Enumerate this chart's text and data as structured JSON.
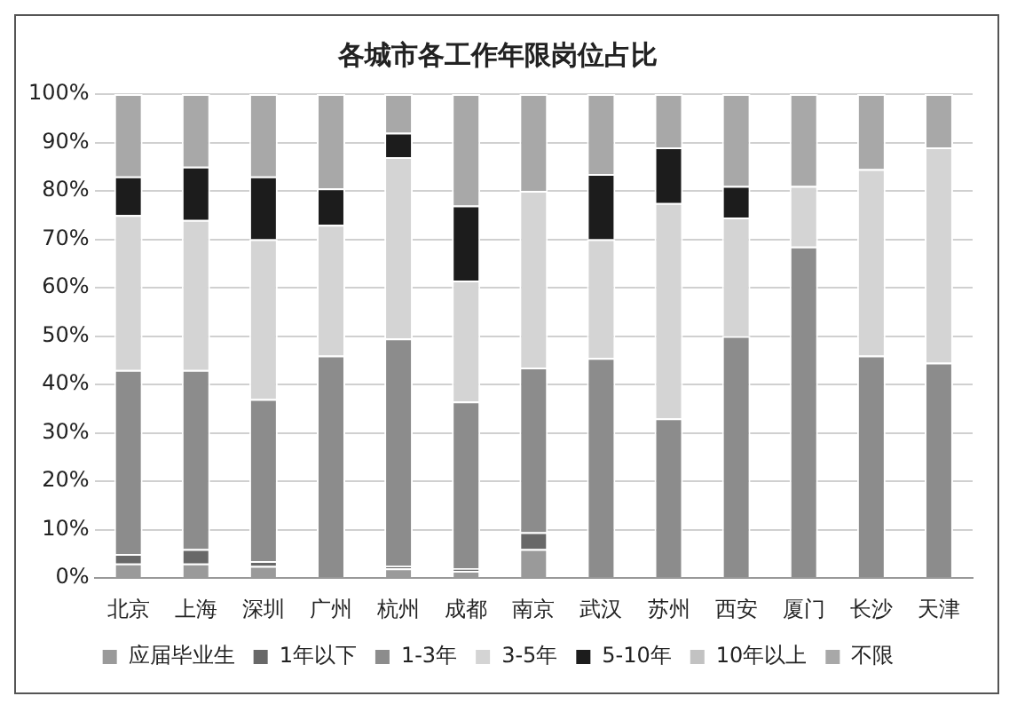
{
  "chart_data": {
    "type": "bar",
    "title": "各城市各工作年限岗位占比",
    "stacked": true,
    "categories": [
      "北京",
      "上海",
      "深圳",
      "广州",
      "杭州",
      "成都",
      "南京",
      "武汉",
      "苏州",
      "西安",
      "厦门",
      "长沙",
      "天津"
    ],
    "series": [
      {
        "name": "应届毕业生",
        "color": "#9a9a9a",
        "values": [
          3,
          3,
          2.5,
          0,
          2,
          1.5,
          6,
          0,
          0,
          0,
          0,
          0,
          0
        ]
      },
      {
        "name": "1年以下",
        "color": "#686868",
        "values": [
          2,
          3,
          1,
          0,
          0.5,
          0.5,
          3.5,
          0,
          0,
          0,
          0,
          0,
          0
        ]
      },
      {
        "name": "1-3年",
        "color": "#8c8c8c",
        "values": [
          38,
          37,
          33.5,
          46,
          47,
          34.5,
          34,
          45.5,
          33,
          50,
          68.5,
          46,
          44.5
        ]
      },
      {
        "name": "3-5年",
        "color": "#d4d4d4",
        "values": [
          32,
          31,
          33,
          27,
          37.5,
          25,
          36.5,
          24.5,
          44.5,
          24.5,
          12.5,
          38.5,
          44.5
        ]
      },
      {
        "name": "5-10年",
        "color": "#1c1c1c",
        "values": [
          8,
          11,
          13,
          7.5,
          5,
          15.5,
          0,
          13.5,
          11.5,
          6.5,
          0,
          0,
          0
        ]
      },
      {
        "name": "10年以上",
        "color": "#c2c2c2",
        "values": [
          0,
          0,
          0,
          0,
          0,
          0,
          0,
          0,
          0,
          0,
          0,
          0,
          0
        ]
      },
      {
        "name": "不限",
        "color": "#a8a8a8",
        "values": [
          17,
          15,
          17,
          19.5,
          8,
          23,
          20,
          16.5,
          11,
          19,
          19,
          15.5,
          11
        ]
      }
    ],
    "ylim": [
      0,
      100
    ],
    "yticks": [
      {
        "value": 0,
        "label": "0%"
      },
      {
        "value": 10,
        "label": "10%"
      },
      {
        "value": 20,
        "label": "20%"
      },
      {
        "value": 30,
        "label": "30%"
      },
      {
        "value": 40,
        "label": "40%"
      },
      {
        "value": 50,
        "label": "50%"
      },
      {
        "value": 60,
        "label": "60%"
      },
      {
        "value": 70,
        "label": "70%"
      },
      {
        "value": 80,
        "label": "80%"
      },
      {
        "value": 90,
        "label": "90%"
      },
      {
        "value": 100,
        "label": "100%"
      }
    ],
    "grid": "y",
    "legend": "bottom"
  }
}
